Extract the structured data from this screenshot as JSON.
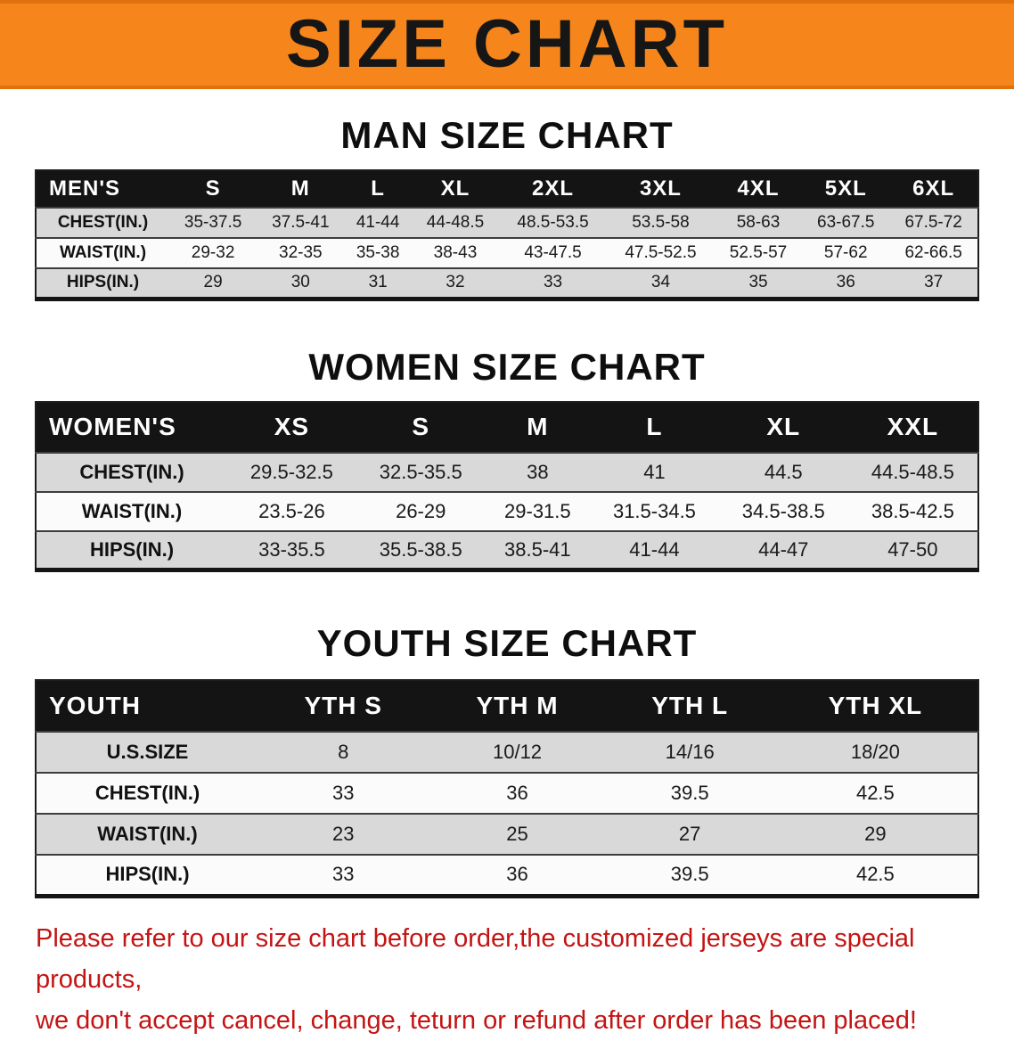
{
  "banner": {
    "title": "SIZE CHART"
  },
  "colors": {
    "banner_bg": "#f6861c",
    "banner_border": "#e0720e",
    "header_row_bg": "#141414",
    "header_row_text": "#ffffff",
    "row_alt_bg": "#d9d9d9",
    "row_bg": "#fbfbfb",
    "note_red": "#c41414"
  },
  "sections": [
    {
      "heading": "MAN SIZE CHART",
      "table": {
        "corner_label": "MEN'S",
        "columns": [
          "S",
          "M",
          "L",
          "XL",
          "2XL",
          "3XL",
          "4XL",
          "5XL",
          "6XL"
        ],
        "rows": [
          {
            "label": "CHEST(IN.)",
            "values": [
              "35-37.5",
              "37.5-41",
              "41-44",
              "44-48.5",
              "48.5-53.5",
              "53.5-58",
              "58-63",
              "63-67.5",
              "67.5-72"
            ]
          },
          {
            "label": "WAIST(IN.)",
            "values": [
              "29-32",
              "32-35",
              "35-38",
              "38-43",
              "43-47.5",
              "47.5-52.5",
              "52.5-57",
              "57-62",
              "62-66.5"
            ]
          },
          {
            "label": "HIPS(IN.)",
            "values": [
              "29",
              "30",
              "31",
              "32",
              "33",
              "34",
              "35",
              "36",
              "37"
            ]
          }
        ]
      }
    },
    {
      "heading": "WOMEN SIZE CHART",
      "table": {
        "corner_label": "WOMEN'S",
        "columns": [
          "XS",
          "S",
          "M",
          "L",
          "XL",
          "XXL"
        ],
        "rows": [
          {
            "label": "CHEST(IN.)",
            "values": [
              "29.5-32.5",
              "32.5-35.5",
              "38",
              "41",
              "44.5",
              "44.5-48.5"
            ]
          },
          {
            "label": "WAIST(IN.)",
            "values": [
              "23.5-26",
              "26-29",
              "29-31.5",
              "31.5-34.5",
              "34.5-38.5",
              "38.5-42.5"
            ]
          },
          {
            "label": "HIPS(IN.)",
            "values": [
              "33-35.5",
              "35.5-38.5",
              "38.5-41",
              "41-44",
              "44-47",
              "47-50"
            ]
          }
        ]
      }
    },
    {
      "heading": "YOUTH SIZE CHART",
      "table": {
        "corner_label": "YOUTH",
        "columns": [
          "YTH S",
          "YTH M",
          "YTH L",
          "YTH XL"
        ],
        "rows": [
          {
            "label": "U.S.SIZE",
            "values": [
              "8",
              "10/12",
              "14/16",
              "18/20"
            ]
          },
          {
            "label": "CHEST(IN.)",
            "values": [
              "33",
              "36",
              "39.5",
              "42.5"
            ]
          },
          {
            "label": "WAIST(IN.)",
            "values": [
              "23",
              "25",
              "27",
              "29"
            ]
          },
          {
            "label": "HIPS(IN.)",
            "values": [
              "33",
              "36",
              "39.5",
              "42.5"
            ]
          }
        ]
      }
    }
  ],
  "footer_note": {
    "line1": "Please refer to our size chart before order,the customized jerseys are special products,",
    "line2": "we don't accept cancel, change, teturn or refund after order has been placed!"
  }
}
